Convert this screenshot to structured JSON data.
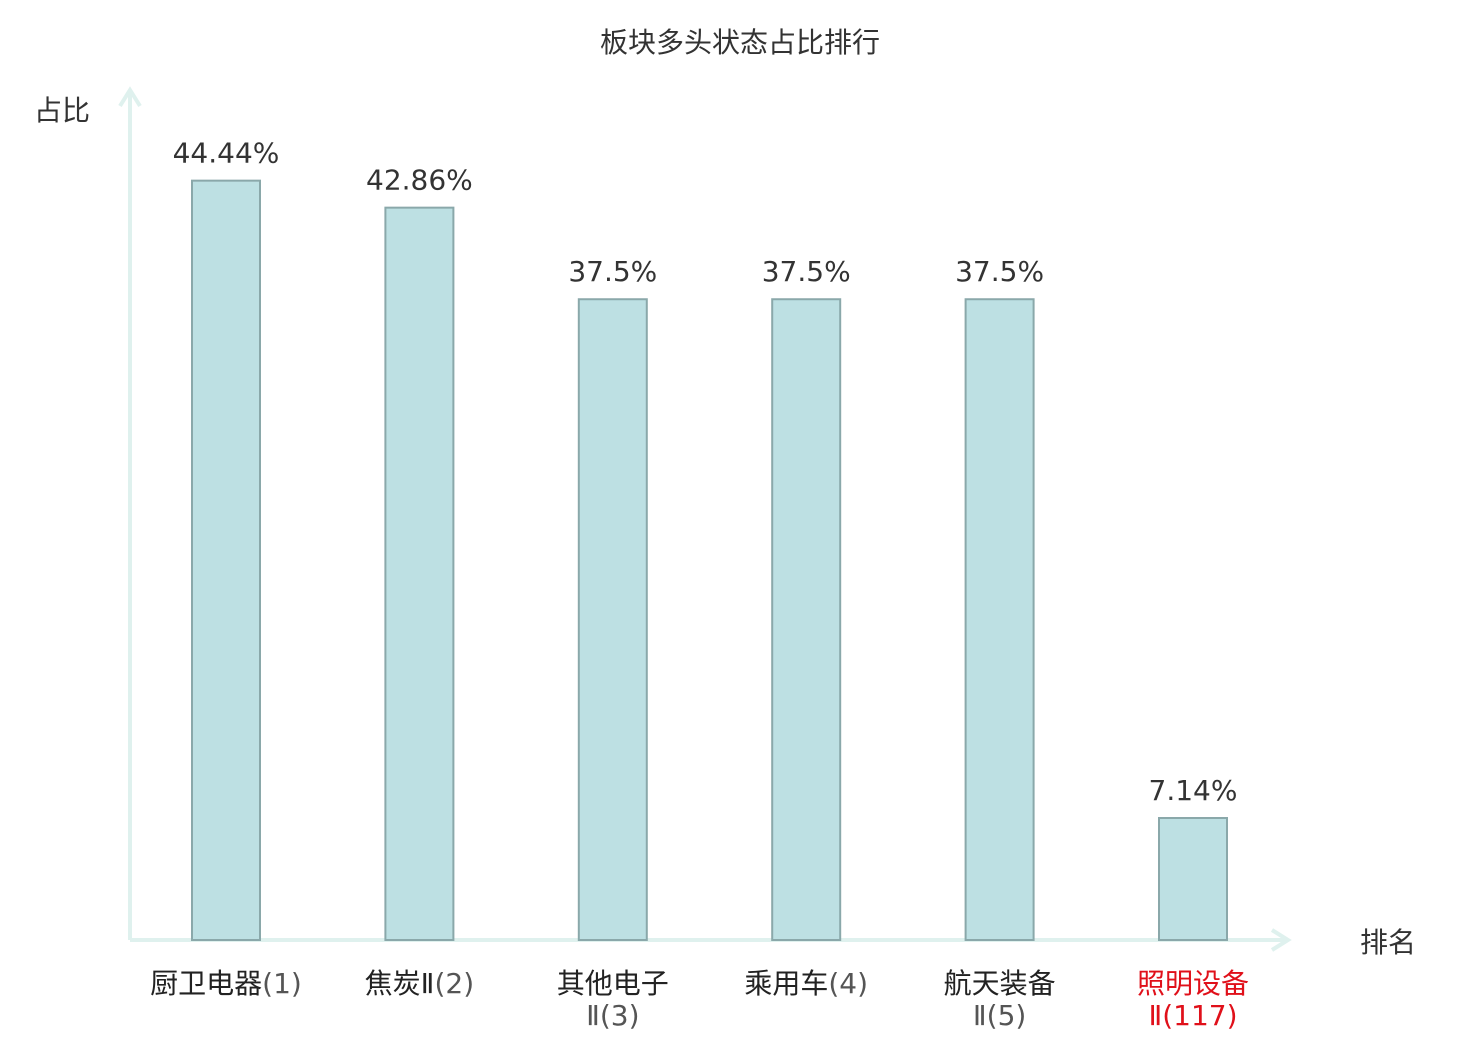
{
  "chart_data": {
    "type": "bar",
    "title": "板块多头状态占比排行",
    "ylabel": "占比",
    "xlabel": "排名",
    "ylim": [
      0,
      50
    ],
    "grid": false,
    "legend": "none",
    "categories": [
      {
        "lines": [
          "厨卫电器",
          "(1)"
        ],
        "highlight": false
      },
      {
        "lines": [
          "焦炭Ⅱ",
          "(2)"
        ],
        "highlight": false
      },
      {
        "lines": [
          "其他电子",
          "Ⅱ(3)"
        ],
        "highlight": false
      },
      {
        "lines": [
          "乘用车",
          "(4)"
        ],
        "highlight": false
      },
      {
        "lines": [
          "航天装备",
          "Ⅱ(5)"
        ],
        "highlight": false
      },
      {
        "lines": [
          "照明设备",
          "Ⅱ(117)"
        ],
        "highlight": true
      }
    ],
    "values": [
      44.44,
      42.86,
      37.5,
      37.5,
      37.5,
      7.14
    ],
    "value_labels": [
      "44.44%",
      "42.86%",
      "37.5%",
      "37.5%",
      "37.5%",
      "7.14%"
    ],
    "colors": {
      "bar_fill": "#bde0e3",
      "bar_stroke": "#8aa8aa",
      "axis": "#dff1ee",
      "text": "#333333",
      "category_text": "#222222",
      "category_suffix": "#555555",
      "highlight": "#e0101a"
    }
  }
}
